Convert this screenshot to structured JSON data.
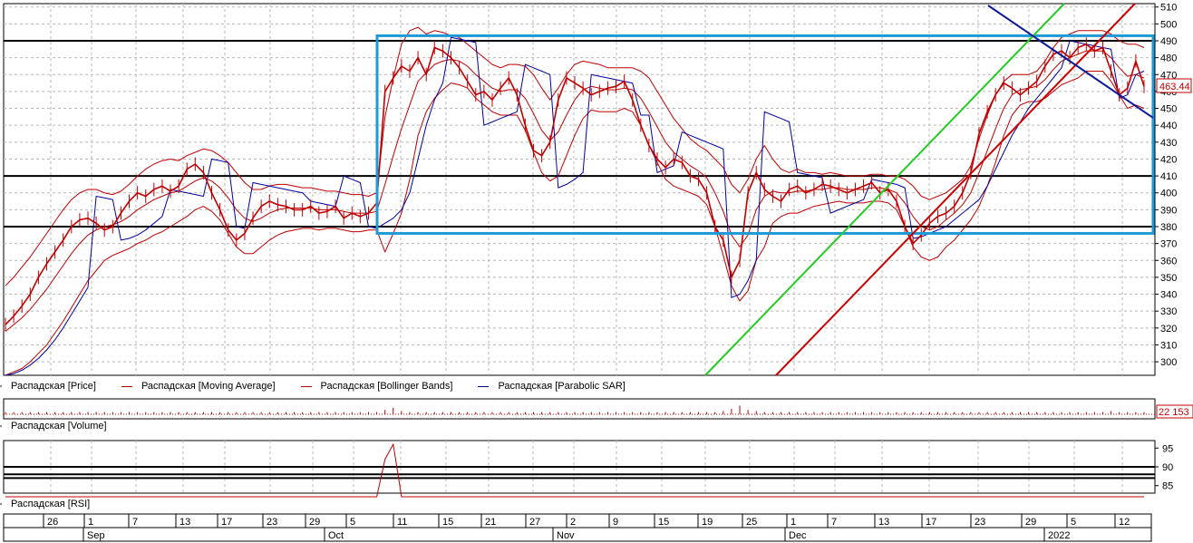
{
  "colors": {
    "price": "#c00000",
    "sar": "#0000a0",
    "bands": "#c00000",
    "box": "#1e9ad6",
    "green_line": "#22cc22",
    "red_line": "#cc0000",
    "blue_line": "#0a1a9a",
    "grid": "#b8b8b8"
  },
  "legends": {
    "price_panel": [
      {
        "label": "Распадская [Price]",
        "color": "#c00000"
      },
      {
        "label": "Распадская [Moving Average]",
        "color": "#c00000"
      },
      {
        "label": "Распадская [Bollinger Bands]",
        "color": "#c00000"
      },
      {
        "label": "Распадская [Parabolic SAR]",
        "color": "#0000a0"
      }
    ],
    "volume_panel": "Распадская [Volume]",
    "rsi_panel": "Распадская [RSI]"
  },
  "chart_data": [
    {
      "type": "line",
      "panel": "price",
      "y_ticks": [
        300,
        310,
        320,
        330,
        340,
        350,
        360,
        370,
        380,
        390,
        400,
        410,
        420,
        430,
        440,
        450,
        460,
        470,
        480,
        490,
        500,
        510
      ],
      "ylim": [
        292,
        512
      ],
      "last_value_label": "463.44",
      "horizontal_levels": [
        490,
        410,
        380
      ],
      "box": {
        "y_top": 493,
        "y_bottom": 376
      },
      "series": [
        {
          "name": "Распадская [Price]",
          "values": [
            322,
            327,
            333,
            340,
            350,
            358,
            365,
            372,
            380,
            384,
            385,
            382,
            378,
            380,
            388,
            395,
            400,
            398,
            402,
            404,
            401,
            404,
            414,
            417,
            412,
            400,
            390,
            378,
            372,
            376,
            385,
            392,
            395,
            393,
            392,
            390,
            390,
            392,
            388,
            389,
            392,
            385,
            388,
            386,
            388,
            394,
            460,
            468,
            475,
            472,
            480,
            470,
            486,
            484,
            480,
            474,
            466,
            458,
            460,
            455,
            462,
            468,
            458,
            440,
            425,
            422,
            430,
            455,
            468,
            465,
            462,
            458,
            460,
            462,
            463,
            466,
            455,
            440,
            428,
            420,
            415,
            420,
            418,
            410,
            408,
            400,
            380,
            372,
            350,
            360,
            400,
            412,
            402,
            398,
            395,
            402,
            404,
            400,
            402,
            405,
            404,
            402,
            400,
            402,
            404,
            406,
            400,
            402,
            395,
            380,
            370,
            375,
            382,
            386,
            388,
            392,
            400,
            412,
            435,
            448,
            458,
            465,
            462,
            458,
            462,
            466,
            475,
            482,
            484,
            480,
            486,
            488,
            484,
            486,
            472,
            458,
            462,
            478,
            463
          ]
        },
        {
          "name": "Распадская [Moving Average]",
          "values": [
            318,
            322,
            326,
            331,
            337,
            343,
            350,
            357,
            364,
            370,
            375,
            378,
            380,
            381,
            383,
            386,
            390,
            393,
            396,
            398,
            400,
            401,
            404,
            407,
            409,
            407,
            403,
            397,
            390,
            385,
            383,
            385,
            388,
            390,
            391,
            391,
            391,
            391,
            390,
            390,
            390,
            389,
            388,
            388,
            388,
            389,
            405,
            422,
            438,
            452,
            466,
            471,
            476,
            478,
            479,
            478,
            475,
            470,
            466,
            462,
            460,
            461,
            461,
            456,
            447,
            437,
            431,
            436,
            446,
            455,
            461,
            463,
            462,
            461,
            461,
            462,
            461,
            456,
            448,
            439,
            430,
            424,
            420,
            416,
            413,
            409,
            400,
            389,
            375,
            368,
            375,
            390,
            398,
            401,
            400,
            400,
            401,
            401,
            402,
            402,
            403,
            403,
            402,
            402,
            402,
            403,
            403,
            402,
            400,
            394,
            386,
            380,
            378,
            380,
            384,
            388,
            393,
            400,
            412,
            425,
            438,
            450,
            458,
            461,
            462,
            463,
            467,
            473,
            478,
            480,
            482,
            484,
            484,
            484,
            480,
            474,
            469,
            470,
            468
          ]
        },
        {
          "name": "Распадская [Bollinger Bands] upper",
          "values": [
            345,
            350,
            356,
            362,
            369,
            376,
            383,
            390,
            396,
            400,
            402,
            402,
            400,
            399,
            401,
            405,
            410,
            414,
            417,
            419,
            420,
            419,
            422,
            424,
            426,
            425,
            422,
            418,
            412,
            406,
            402,
            402,
            404,
            405,
            405,
            404,
            403,
            403,
            402,
            401,
            401,
            400,
            399,
            399,
            398,
            400,
            445,
            468,
            488,
            496,
            498,
            494,
            496,
            495,
            493,
            492,
            488,
            484,
            480,
            476,
            474,
            476,
            476,
            475,
            470,
            462,
            455,
            462,
            470,
            476,
            478,
            477,
            476,
            474,
            474,
            474,
            474,
            472,
            468,
            460,
            452,
            444,
            438,
            432,
            428,
            425,
            420,
            415,
            405,
            400,
            408,
            420,
            428,
            420,
            414,
            412,
            414,
            412,
            412,
            411,
            412,
            411,
            410,
            410,
            410,
            411,
            411,
            410,
            410,
            408,
            404,
            398,
            396,
            398,
            400,
            404,
            408,
            416,
            432,
            446,
            458,
            466,
            470,
            470,
            470,
            472,
            478,
            486,
            492,
            494,
            496,
            496,
            496,
            496,
            494,
            490,
            488,
            488,
            486
          ]
        },
        {
          "name": "Распадская [Bollinger Bands] lower",
          "values": [
            292,
            294,
            296,
            300,
            305,
            310,
            317,
            324,
            332,
            340,
            348,
            354,
            360,
            363,
            365,
            367,
            370,
            372,
            375,
            377,
            380,
            383,
            386,
            390,
            392,
            389,
            384,
            376,
            368,
            364,
            364,
            368,
            372,
            375,
            377,
            378,
            379,
            379,
            378,
            379,
            379,
            378,
            377,
            377,
            378,
            378,
            365,
            376,
            388,
            408,
            434,
            448,
            456,
            461,
            465,
            464,
            462,
            456,
            452,
            448,
            446,
            446,
            446,
            437,
            424,
            412,
            407,
            410,
            422,
            434,
            444,
            449,
            448,
            448,
            448,
            450,
            448,
            440,
            428,
            418,
            408,
            404,
            402,
            400,
            398,
            393,
            380,
            363,
            345,
            336,
            342,
            360,
            368,
            382,
            386,
            388,
            388,
            390,
            392,
            393,
            394,
            395,
            394,
            394,
            394,
            395,
            395,
            394,
            390,
            380,
            368,
            362,
            360,
            362,
            368,
            372,
            378,
            384,
            392,
            404,
            418,
            434,
            446,
            452,
            454,
            454,
            456,
            460,
            464,
            466,
            468,
            472,
            472,
            472,
            466,
            458,
            450,
            452,
            450
          ]
        },
        {
          "name": "Распадская [Parabolic SAR]",
          "values": [
            292,
            293,
            295,
            298,
            302,
            307,
            313,
            320,
            328,
            336,
            344,
            398,
            397,
            396,
            372,
            373,
            375,
            378,
            382,
            386,
            402,
            401,
            400,
            399,
            398,
            420,
            419,
            418,
            380,
            379,
            406,
            405,
            404,
            403,
            402,
            401,
            400,
            395,
            394,
            393,
            392,
            410,
            408,
            406,
            380,
            379,
            382,
            385,
            390,
            400,
            420,
            440,
            455,
            465,
            492,
            491,
            490,
            489,
            440,
            442,
            444,
            446,
            448,
            476,
            474,
            472,
            470,
            403,
            405,
            408,
            412,
            470,
            469,
            468,
            467,
            466,
            465,
            446,
            446,
            412,
            414,
            416,
            436,
            434,
            432,
            430,
            428,
            426,
            338,
            340,
            348,
            360,
            448,
            446,
            444,
            442,
            412,
            411,
            410,
            409,
            388,
            390,
            392,
            394,
            396,
            408,
            407,
            406,
            405,
            403,
            373,
            374,
            376,
            378,
            380,
            384,
            388,
            392,
            396,
            404,
            414,
            424,
            434,
            442,
            450,
            456,
            462,
            468,
            474,
            490,
            489,
            488,
            487,
            486,
            485,
            456,
            458,
            470,
            472
          ]
        }
      ]
    },
    {
      "type": "bar",
      "panel": "volume",
      "last_value_label": "22 153",
      "values": [
        2,
        2,
        2,
        2,
        2,
        2,
        2,
        2,
        2,
        2,
        2,
        2,
        2,
        2,
        2,
        2,
        2,
        2,
        2,
        2,
        2,
        2,
        2,
        2,
        2,
        2,
        2,
        2,
        2,
        2,
        2,
        2,
        2,
        2,
        2,
        2,
        2,
        2,
        2,
        2,
        2,
        2,
        2,
        2,
        2,
        2,
        4,
        6,
        3,
        2,
        2,
        2,
        2,
        2,
        2,
        2,
        2,
        2,
        2,
        2,
        2,
        2,
        2,
        2,
        2,
        2,
        2,
        2,
        2,
        2,
        2,
        2,
        2,
        2,
        2,
        2,
        2,
        2,
        2,
        2,
        2,
        2,
        2,
        2,
        2,
        2,
        2,
        3,
        5,
        8,
        4,
        3,
        2,
        2,
        2,
        2,
        2,
        2,
        2,
        2,
        2,
        2,
        2,
        2,
        2,
        2,
        2,
        2,
        2,
        2,
        2,
        2,
        2,
        2,
        2,
        2,
        2,
        2,
        2,
        2,
        2,
        2,
        2,
        2,
        2,
        2,
        2,
        2,
        2,
        2,
        2,
        2,
        2,
        2,
        3,
        2,
        2,
        2,
        2
      ]
    },
    {
      "type": "line",
      "panel": "rsi",
      "y_ticks": [
        85,
        90,
        95
      ],
      "ylim": [
        83,
        97
      ],
      "horizontal_levels": [
        90,
        88,
        87
      ],
      "values": [
        82,
        82,
        82,
        82,
        82,
        82,
        82,
        82,
        82,
        82,
        82,
        82,
        82,
        82,
        82,
        82,
        82,
        82,
        82,
        82,
        82,
        82,
        82,
        82,
        82,
        82,
        82,
        82,
        82,
        82,
        82,
        82,
        82,
        82,
        82,
        82,
        82,
        82,
        82,
        82,
        82,
        82,
        82,
        82,
        82,
        82,
        92,
        96,
        80,
        82,
        82,
        82,
        82,
        82,
        82,
        82,
        82,
        82,
        82,
        82,
        82,
        82,
        82,
        82,
        82,
        82,
        82,
        82,
        82,
        82,
        82,
        82,
        82,
        82,
        82,
        82,
        82,
        82,
        82,
        82,
        82,
        82,
        82,
        82,
        82,
        82,
        82,
        82,
        82,
        82,
        82,
        82,
        82,
        82,
        82,
        82,
        82,
        82,
        82,
        82,
        82,
        82,
        82,
        82,
        82,
        82,
        82,
        82,
        82,
        82,
        82,
        82,
        82,
        82,
        82,
        82,
        82,
        82,
        82,
        82,
        82,
        82,
        82,
        82,
        82,
        82,
        82,
        82,
        82,
        82,
        82,
        82,
        82,
        82,
        82,
        82,
        82,
        82,
        82
      ]
    }
  ],
  "time_axis": {
    "days": [
      "26",
      "1",
      "7",
      "13",
      "17",
      "23",
      "29",
      "5",
      "11",
      "15",
      "21",
      "27",
      "2",
      "9",
      "15",
      "19",
      "25",
      "1",
      "7",
      "13",
      "17",
      "23",
      "29",
      "5",
      "12"
    ],
    "months": [
      "Sep",
      "Oct",
      "Nov",
      "Dec",
      "2022"
    ]
  }
}
